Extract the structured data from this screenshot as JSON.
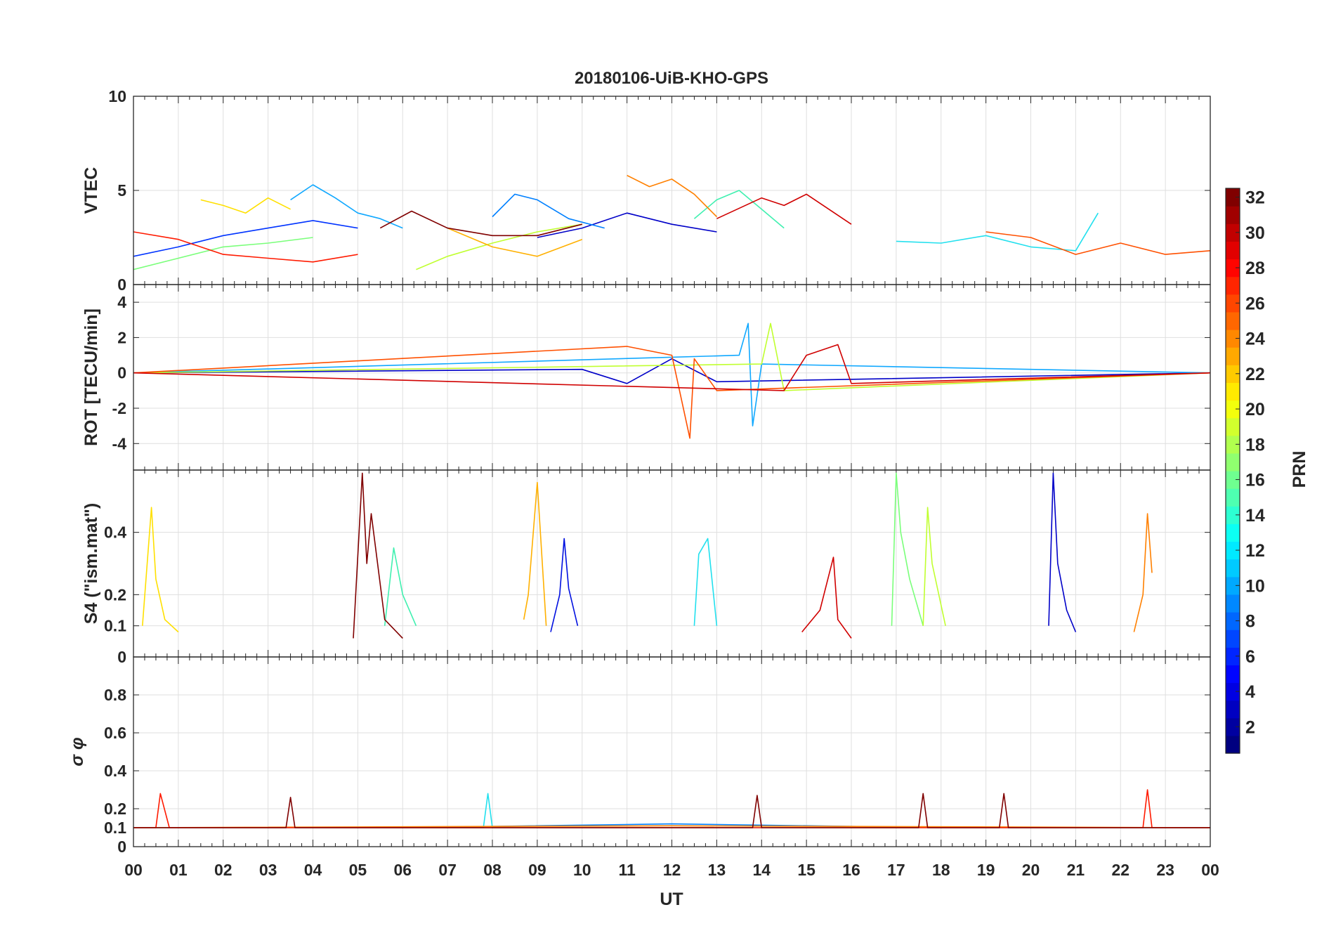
{
  "chart_data": {
    "type": "line",
    "title": "20180106-UiB-KHO-GPS",
    "xlabel": "UT",
    "x_tick_labels": [
      "00",
      "01",
      "02",
      "03",
      "04",
      "05",
      "06",
      "07",
      "08",
      "09",
      "10",
      "11",
      "12",
      "13",
      "14",
      "15",
      "16",
      "17",
      "18",
      "19",
      "20",
      "21",
      "22",
      "23",
      "00"
    ],
    "xlim": [
      0,
      24
    ],
    "grid": true,
    "colorbar": {
      "label": "PRN",
      "range": [
        1,
        32
      ],
      "tick_labels": [
        "2",
        "4",
        "6",
        "8",
        "10",
        "12",
        "14",
        "16",
        "18",
        "20",
        "22",
        "24",
        "26",
        "28",
        "30",
        "32"
      ],
      "colormap": "jet",
      "placement": "right"
    },
    "panels": [
      {
        "id": "vtec",
        "ylabel": "VTEC",
        "ylim": [
          0,
          10
        ],
        "y_ticks": [
          0,
          5,
          10
        ],
        "y_tick_labels": [
          "0",
          "5",
          "10"
        ],
        "series": [
          {
            "prn": 2,
            "color": "#0000c8",
            "x": [
              9.0,
              10.0,
              11.0,
              12.0,
              13.0
            ],
            "y": [
              2.5,
              3.0,
              3.8,
              3.2,
              2.8
            ]
          },
          {
            "prn": 5,
            "color": "#0033ff",
            "x": [
              0.0,
              1.0,
              2.0,
              3.0,
              4.0,
              5.0
            ],
            "y": [
              1.5,
              2.0,
              2.6,
              3.0,
              3.4,
              3.0
            ]
          },
          {
            "prn": 8,
            "color": "#0080ff",
            "x": [
              8.0,
              8.5,
              9.0,
              9.7,
              10.5
            ],
            "y": [
              3.6,
              4.8,
              4.5,
              3.5,
              3.0
            ]
          },
          {
            "prn": 10,
            "color": "#10a8ff",
            "x": [
              3.5,
              4.0,
              4.5,
              5.0,
              5.5,
              6.0
            ],
            "y": [
              4.5,
              5.3,
              4.6,
              3.8,
              3.5,
              3.0
            ]
          },
          {
            "prn": 12,
            "color": "#22e0ee",
            "x": [
              17.0,
              18.0,
              19.0,
              20.0,
              21.0,
              21.5
            ],
            "y": [
              2.3,
              2.2,
              2.6,
              2.0,
              1.8,
              3.8
            ]
          },
          {
            "prn": 14,
            "color": "#40f0b0",
            "x": [
              12.5,
              13.0,
              13.5,
              14.0,
              14.5
            ],
            "y": [
              3.5,
              4.5,
              5.0,
              4.0,
              3.0
            ]
          },
          {
            "prn": 16,
            "color": "#7aff7a",
            "x": [
              0.0,
              1.0,
              2.0,
              3.0,
              4.0
            ],
            "y": [
              0.8,
              1.4,
              2.0,
              2.2,
              2.5
            ]
          },
          {
            "prn": 18,
            "color": "#c0ff30",
            "x": [
              6.3,
              7.0,
              8.0,
              9.0,
              10.0
            ],
            "y": [
              0.8,
              1.5,
              2.2,
              2.8,
              3.2
            ]
          },
          {
            "prn": 20,
            "color": "#ffe000",
            "x": [
              1.5,
              2.0,
              2.5,
              3.0,
              3.5
            ],
            "y": [
              4.5,
              4.2,
              3.8,
              4.6,
              4.0
            ]
          },
          {
            "prn": 22,
            "color": "#ffb000",
            "x": [
              7.0,
              8.0,
              9.0,
              10.0
            ],
            "y": [
              3.0,
              2.0,
              1.5,
              2.4
            ]
          },
          {
            "prn": 24,
            "color": "#ff8000",
            "x": [
              11.0,
              11.5,
              12.0,
              12.5,
              13.0
            ],
            "y": [
              5.8,
              5.2,
              5.6,
              4.8,
              3.6
            ]
          },
          {
            "prn": 26,
            "color": "#ff5000",
            "x": [
              19.0,
              20.0,
              21.0,
              22.0,
              23.0,
              24.0
            ],
            "y": [
              2.8,
              2.5,
              1.6,
              2.2,
              1.6,
              1.8
            ]
          },
          {
            "prn": 28,
            "color": "#ff1a00",
            "x": [
              0.0,
              1.0,
              2.0,
              3.0,
              4.0,
              5.0
            ],
            "y": [
              2.8,
              2.4,
              1.6,
              1.4,
              1.2,
              1.6
            ]
          },
          {
            "prn": 30,
            "color": "#d00000",
            "x": [
              13.0,
              14.0,
              14.5,
              15.0,
              16.0
            ],
            "y": [
              3.5,
              4.6,
              4.2,
              4.8,
              3.2
            ]
          },
          {
            "prn": 32,
            "color": "#800000",
            "x": [
              5.5,
              6.2,
              7.0,
              8.0,
              9.0,
              10.0
            ],
            "y": [
              3.0,
              3.9,
              3.0,
              2.6,
              2.6,
              3.2
            ]
          }
        ]
      },
      {
        "id": "rot",
        "ylabel": "ROT [TECU/min]",
        "ylim": [
          -5.5,
          5
        ],
        "y_ticks": [
          -4,
          -2,
          0,
          2,
          4
        ],
        "y_tick_labels": [
          "-4",
          "-2",
          "0",
          "2",
          "4"
        ],
        "series": [
          {
            "prn": 2,
            "color": "#0000c8",
            "x": [
              0.0,
              10.0,
              11.0,
              12.0,
              13.0,
              24.0
            ],
            "y": [
              0.0,
              0.2,
              -0.6,
              0.8,
              -0.5,
              0.0
            ]
          },
          {
            "prn": 10,
            "color": "#10a8ff",
            "x": [
              0.0,
              13.5,
              13.7,
              13.8,
              14.0,
              24.0
            ],
            "y": [
              0.0,
              1.0,
              2.8,
              -3.0,
              0.5,
              0.0
            ]
          },
          {
            "prn": 18,
            "color": "#c0ff30",
            "x": [
              0.0,
              14.0,
              14.2,
              14.5,
              24.0
            ],
            "y": [
              0.0,
              0.5,
              2.8,
              -1.0,
              0.0
            ]
          },
          {
            "prn": 26,
            "color": "#ff5000",
            "x": [
              0.0,
              11.0,
              12.0,
              12.4,
              12.5,
              13.0,
              24.0
            ],
            "y": [
              0.0,
              1.5,
              1.0,
              -3.7,
              0.8,
              -1.0,
              0.0
            ]
          },
          {
            "prn": 30,
            "color": "#d00000",
            "x": [
              0.0,
              14.5,
              15.0,
              15.7,
              16.0,
              24.0
            ],
            "y": [
              0.0,
              -1.0,
              1.0,
              1.6,
              -0.6,
              0.0
            ]
          }
        ]
      },
      {
        "id": "s4",
        "ylabel": "S4 (\"ism.mat\")",
        "ylim": [
          0,
          0.6
        ],
        "y_ticks": [
          0,
          0.1,
          0.2,
          0.4
        ],
        "y_tick_labels": [
          "0",
          "0.1",
          "0.2",
          "0.4"
        ],
        "series": [
          {
            "prn": 2,
            "color": "#0000c8",
            "x": [
              20.4,
              20.5,
              20.6,
              20.8,
              21.0
            ],
            "y": [
              0.1,
              0.59,
              0.3,
              0.15,
              0.08
            ]
          },
          {
            "prn": 4,
            "color": "#0010e0",
            "x": [
              9.3,
              9.5,
              9.6,
              9.7,
              9.9
            ],
            "y": [
              0.08,
              0.2,
              0.38,
              0.22,
              0.1
            ]
          },
          {
            "prn": 12,
            "color": "#22e0ee",
            "x": [
              12.5,
              12.6,
              12.8,
              13.0
            ],
            "y": [
              0.1,
              0.33,
              0.38,
              0.1
            ]
          },
          {
            "prn": 14,
            "color": "#40f0b0",
            "x": [
              5.6,
              5.8,
              6.0,
              6.3
            ],
            "y": [
              0.1,
              0.35,
              0.2,
              0.1
            ]
          },
          {
            "prn": 16,
            "color": "#7aff7a",
            "x": [
              16.9,
              17.0,
              17.1,
              17.3,
              17.6
            ],
            "y": [
              0.1,
              0.59,
              0.4,
              0.25,
              0.1
            ]
          },
          {
            "prn": 18,
            "color": "#c0ff30",
            "x": [
              17.6,
              17.7,
              17.8,
              18.1
            ],
            "y": [
              0.1,
              0.48,
              0.3,
              0.1
            ]
          },
          {
            "prn": 20,
            "color": "#ffe000",
            "x": [
              0.2,
              0.4,
              0.5,
              0.7,
              1.0
            ],
            "y": [
              0.1,
              0.48,
              0.25,
              0.12,
              0.08
            ]
          },
          {
            "prn": 22,
            "color": "#ffb000",
            "x": [
              8.7,
              8.8,
              9.0,
              9.2
            ],
            "y": [
              0.12,
              0.2,
              0.56,
              0.1
            ]
          },
          {
            "prn": 24,
            "color": "#ff8000",
            "x": [
              22.3,
              22.5,
              22.6,
              22.7
            ],
            "y": [
              0.08,
              0.2,
              0.46,
              0.27
            ]
          },
          {
            "prn": 30,
            "color": "#d00000",
            "x": [
              14.9,
              15.3,
              15.6,
              15.7,
              16.0
            ],
            "y": [
              0.08,
              0.15,
              0.32,
              0.12,
              0.06
            ]
          },
          {
            "prn": 32,
            "color": "#800000",
            "x": [
              4.9,
              5.1,
              5.2,
              5.3,
              5.6,
              6.0
            ],
            "y": [
              0.06,
              0.59,
              0.3,
              0.46,
              0.12,
              0.06
            ]
          }
        ]
      },
      {
        "id": "sigma-phi",
        "ylabel": "σ φ",
        "ylim": [
          0,
          1
        ],
        "y_ticks": [
          0,
          0.1,
          0.2,
          0.4,
          0.6,
          0.8
        ],
        "y_tick_labels": [
          "0",
          "0.1",
          "0.2",
          "0.4",
          "0.6",
          "0.8"
        ],
        "series": [
          {
            "prn": 8,
            "color": "#0080ff",
            "x": [
              0.0,
              6.0,
              12.0,
              18.0,
              24.0
            ],
            "y": [
              0.1,
              0.1,
              0.12,
              0.1,
              0.1
            ]
          },
          {
            "prn": 12,
            "color": "#22e0ee",
            "x": [
              0.0,
              7.8,
              7.9,
              8.0,
              24.0
            ],
            "y": [
              0.1,
              0.1,
              0.28,
              0.1,
              0.1
            ]
          },
          {
            "prn": 24,
            "color": "#ff8000",
            "x": [
              0.0,
              12.0,
              24.0
            ],
            "y": [
              0.1,
              0.11,
              0.1
            ]
          },
          {
            "prn": 28,
            "color": "#ff1a00",
            "x": [
              0.0,
              0.5,
              0.6,
              0.8,
              22.5,
              22.6,
              22.7,
              24.0
            ],
            "y": [
              0.1,
              0.1,
              0.28,
              0.1,
              0.1,
              0.3,
              0.1,
              0.1
            ]
          },
          {
            "prn": 32,
            "color": "#800000",
            "x": [
              0.0,
              3.4,
              3.5,
              3.6,
              13.8,
              13.9,
              14.0,
              17.5,
              17.6,
              17.7,
              19.3,
              19.4,
              19.5,
              24.0
            ],
            "y": [
              0.1,
              0.1,
              0.26,
              0.1,
              0.1,
              0.27,
              0.1,
              0.1,
              0.28,
              0.1,
              0.1,
              0.28,
              0.1,
              0.1
            ]
          }
        ]
      }
    ]
  }
}
